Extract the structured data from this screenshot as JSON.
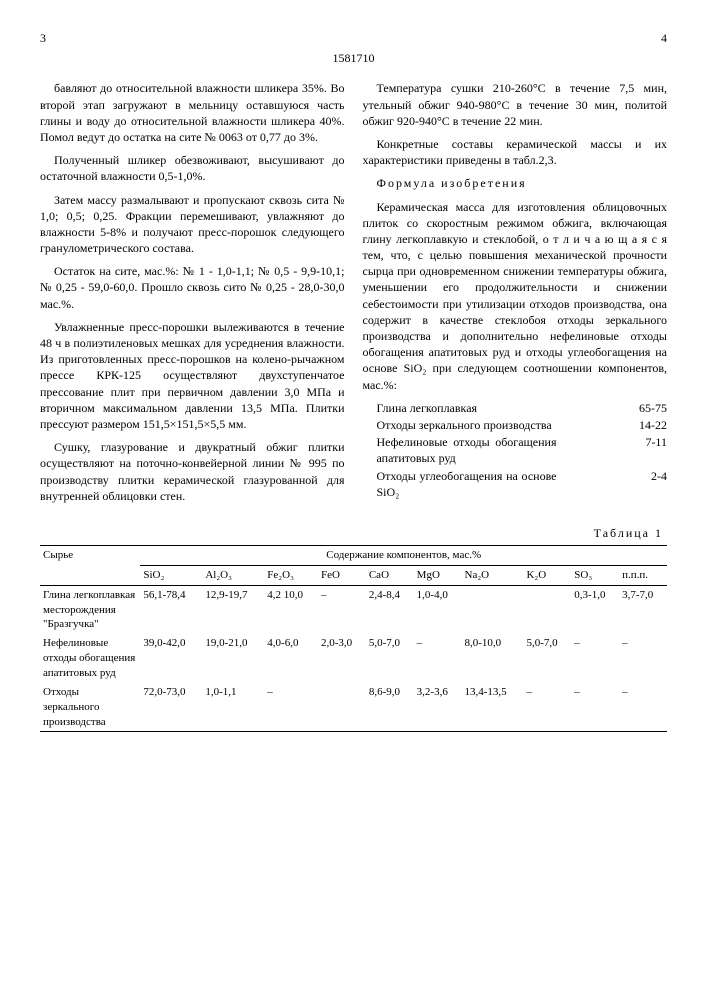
{
  "page_left_no": "3",
  "page_right_no": "4",
  "doc_number": "1581710",
  "left_paragraphs": [
    "бавляют до относительной влажности шликера 35%. Во второй этап загружают в мельницу оставшуюся часть глины и воду до относительной влажности шликера 40%. Помол ведут до остатка на сите № 0063 от 0,77 до 3%.",
    "Полученный шликер обезвоживают, высушивают до остаточной влажности 0,5-1,0%.",
    "Затем массу размалывают и пропускают сквозь сита № 1,0; 0,5; 0,25. Фракции перемешивают, увлажняют до влажности 5-8% и получают пресс-порошок следующего гранулометрического состава.",
    "Остаток на сите, мас.%: № 1 - 1,0-1,1; № 0,5 - 9,9-10,1; № 0,25 - 59,0-60,0. Прошло сквозь сито № 0,25 - 28,0-30,0 мас.%.",
    "Увлажненные пресс-порошки вылеживаются в течение 48 ч в полиэтиленовых мешках для усреднения влажности. Из приготовленных пресс-порошков на колено-рычажном прессе КРК-125 осуществляют двухступенчатое прессование плит при первичном давлении 3,0 МПа и вторичном максимальном давлении 13,5 МПа. Плитки прессуют размером 151,5×151,5×5,5 мм.",
    "Сушку, глазурование и двукратный обжиг плитки осуществляют на поточно-конвейерной линии № 995 по производству плитки керамической глазурованной для внутренней облицовки стен."
  ],
  "right_paragraphs_top": [
    "Температура сушки 210-260°С в течение 7,5 мин, утельный обжиг 940-980°С в течение 30 мин, политой обжиг 920-940°С в течение 22 мин.",
    "Конкретные составы керамической массы и их характеристики приведены в табл.2,3."
  ],
  "formula_header": "Формула изобретения",
  "right_paragraphs_claim": [
    "Керамическая масса для изготовления облицовочных плиток со скоростным режимом обжига, включающая глину легкоплавкую и стеклобой, о т л и ч а ю щ а я с я тем, что, с целью повышения механической прочности сырца при одновременном снижении температуры обжига, уменьшении его продолжительности и снижении себестоимости при утилизации отходов производства, она содержит в качестве стеклобоя отходы зеркального производства и дополнительно нефелиновые отходы обогащения апатитовых руд и отходы углеобогащения на основе SiO₂ при следующем соотношении компонентов, мас.%:"
  ],
  "components": [
    {
      "label": "Глина легкоплавкая",
      "value": "65-75"
    },
    {
      "label": "Отходы зеркального производства",
      "value": "14-22"
    },
    {
      "label": "Нефелиновые отходы обогащения апатитовых руд",
      "value": "7-11"
    },
    {
      "label": "Отходы углеобогащения на основе SiO₂",
      "value": "2-4"
    }
  ],
  "table_caption": "Таблица 1",
  "table": {
    "header_row1": [
      "Сырье",
      "Содержание компонентов, мас.%"
    ],
    "columns": [
      "SiO₂",
      "Al₂O₃",
      "Fe₂O₃",
      "FeO",
      "CaO",
      "MgO",
      "Na₂O",
      "K₂O",
      "SO₃",
      "п.п.п."
    ],
    "rows": [
      {
        "name": "Глина легкоплавкая месторождения \"Бразгучка\"",
        "cells": [
          "56,1-78,4",
          "12,9-19,7",
          "4,2 10,0",
          "–",
          "2,4-8,4",
          "1,0-4,0",
          "",
          "",
          "0,3-1,0",
          "3,7-7,0"
        ]
      },
      {
        "name": "Нефелиновые отходы обогащения апатитовых руд",
        "cells": [
          "39,0-42,0",
          "19,0-21,0",
          "4,0-6,0",
          "2,0-3,0",
          "5,0-7,0",
          "–",
          "8,0-10,0",
          "5,0-7,0",
          "–",
          "–"
        ]
      },
      {
        "name": "Отходы зеркального производства",
        "cells": [
          "72,0-73,0",
          "1,0-1,1",
          "–",
          "",
          "8,6-9,0",
          "3,2-3,6",
          "13,4-13,5",
          "–",
          "–",
          "–"
        ]
      }
    ]
  }
}
